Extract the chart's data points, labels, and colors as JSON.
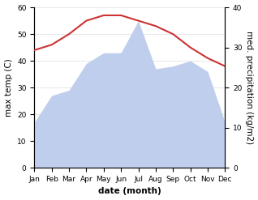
{
  "months": [
    "Jan",
    "Feb",
    "Mar",
    "Apr",
    "May",
    "Jun",
    "Jul",
    "Aug",
    "Sep",
    "Oct",
    "Nov",
    "Dec"
  ],
  "temperature": [
    44,
    46,
    50,
    55,
    57,
    57,
    55,
    53,
    50,
    45,
    41,
    38
  ],
  "precipitation_left": [
    17,
    27,
    29,
    39,
    43,
    43,
    55,
    37,
    38,
    40,
    36,
    17
  ],
  "temp_color": "#cc3333",
  "precip_fill_color": "#c0ceee",
  "temp_ylim": [
    0,
    60
  ],
  "precip_ylim": [
    0,
    40
  ],
  "left_yticks": [
    0,
    10,
    20,
    30,
    40,
    50,
    60
  ],
  "right_yticks": [
    0,
    10,
    20,
    30,
    40
  ],
  "xlabel": "date (month)",
  "ylabel_left": "max temp (C)",
  "ylabel_right": "med. precipitation (kg/m2)",
  "bg_color": "#ffffff",
  "grid_color": "#dddddd",
  "label_fontsize": 7.5,
  "tick_fontsize": 6.5,
  "linewidth": 1.5
}
